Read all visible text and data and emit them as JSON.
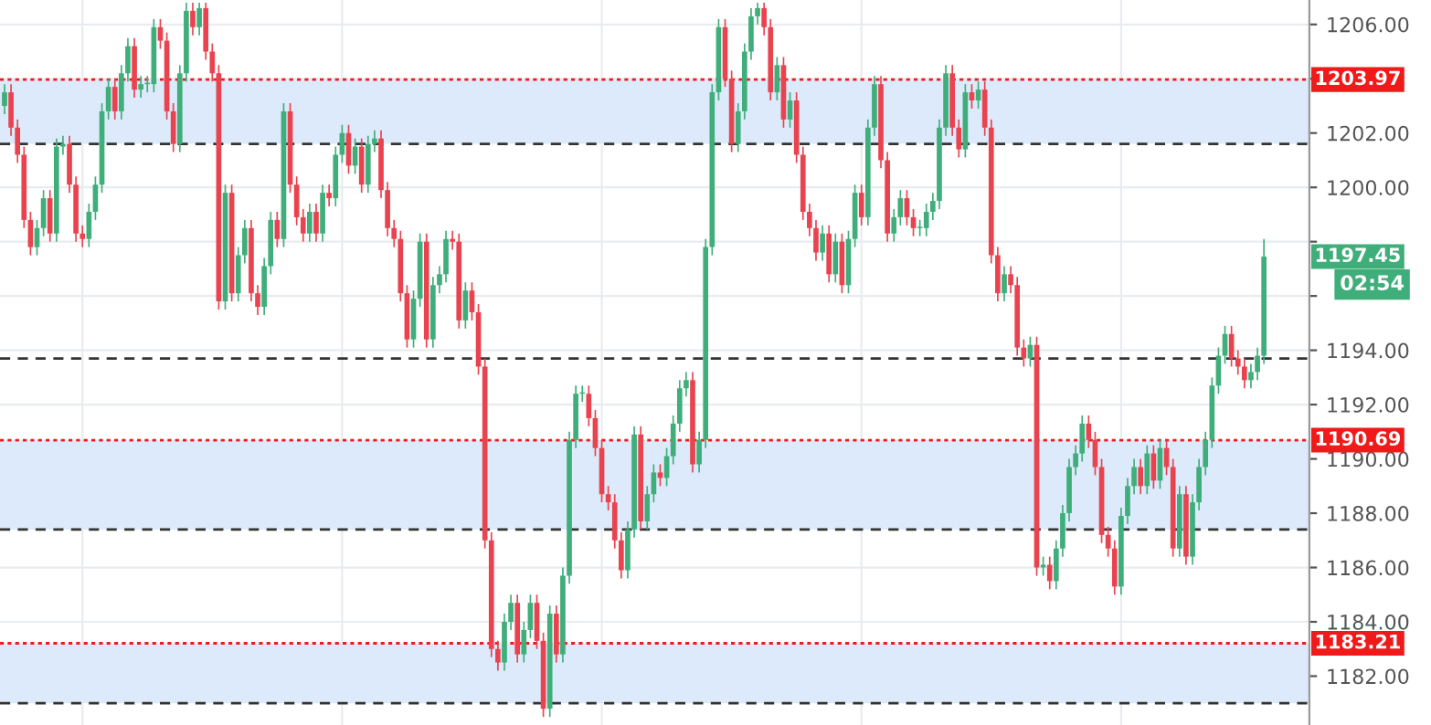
{
  "chart_data": {
    "type": "candlestick",
    "categories": [
      null,
      null,
      null,
      null,
      null,
      null,
      null,
      null,
      null,
      null,
      null,
      null,
      null,
      null,
      null,
      null,
      null,
      null,
      null,
      null,
      null,
      null,
      null,
      null,
      null,
      null,
      null,
      null,
      null,
      null,
      null,
      null,
      null,
      null,
      null,
      null,
      null,
      null,
      null,
      null,
      null,
      null,
      null,
      null,
      null,
      null,
      null,
      null,
      null,
      null,
      null,
      null,
      null,
      null,
      null,
      null,
      null,
      null,
      null,
      null,
      null,
      null,
      null,
      null,
      null,
      null,
      null,
      null,
      null,
      null,
      null,
      null,
      null,
      null,
      null,
      null,
      null,
      null,
      null,
      null,
      null,
      null,
      null,
      null,
      null,
      null,
      null,
      null,
      null,
      null,
      null,
      null,
      null,
      null,
      null,
      null,
      null,
      null,
      null,
      null,
      null,
      null,
      null,
      null,
      null,
      null,
      null,
      null,
      null,
      null,
      null,
      null,
      null,
      null,
      null,
      null,
      null,
      null,
      null,
      null,
      null,
      null,
      null,
      null,
      null,
      null,
      null,
      null,
      null,
      null,
      null,
      null,
      null,
      null,
      null,
      null,
      null,
      null,
      null,
      null,
      null,
      null,
      null,
      null,
      null,
      null,
      null,
      null,
      null,
      null,
      null,
      null,
      null,
      null,
      null,
      null,
      null,
      null,
      null,
      null,
      null,
      null,
      null,
      null,
      null,
      null,
      null,
      null,
      null,
      null,
      null,
      null,
      null,
      null,
      null,
      null,
      null,
      null,
      null,
      null,
      null,
      null,
      null,
      null,
      null,
      null,
      null,
      null,
      null,
      null,
      null,
      null,
      null,
      null,
      null
    ],
    "ohlc": [
      [
        1203.0,
        1203.8,
        1202.7,
        1203.5
      ],
      [
        1203.5,
        1203.8,
        1201.9,
        1202.2
      ],
      [
        1202.2,
        1202.5,
        1200.9,
        1201.2
      ],
      [
        1201.2,
        1201.5,
        1198.5,
        1198.8
      ],
      [
        1198.8,
        1199.1,
        1197.5,
        1197.8
      ],
      [
        1197.8,
        1198.8,
        1197.5,
        1198.5
      ],
      [
        1198.5,
        1199.9,
        1198.2,
        1199.6
      ],
      [
        1199.6,
        1199.9,
        1198.0,
        1198.3
      ],
      [
        1198.3,
        1201.8,
        1198.0,
        1201.5
      ],
      [
        1201.5,
        1201.9,
        1201.2,
        1201.6
      ],
      [
        1201.6,
        1201.9,
        1199.8,
        1200.1
      ],
      [
        1200.1,
        1200.4,
        1198.0,
        1198.3
      ],
      [
        1198.3,
        1198.6,
        1197.8,
        1198.1
      ],
      [
        1198.1,
        1199.4,
        1197.8,
        1199.1
      ],
      [
        1199.1,
        1200.4,
        1198.8,
        1200.1
      ],
      [
        1200.1,
        1203.1,
        1199.8,
        1202.8
      ],
      [
        1202.8,
        1204.0,
        1202.5,
        1203.7
      ],
      [
        1203.7,
        1204.0,
        1202.5,
        1202.8
      ],
      [
        1202.8,
        1204.5,
        1202.5,
        1204.2
      ],
      [
        1204.2,
        1205.5,
        1203.9,
        1205.2
      ],
      [
        1205.2,
        1205.5,
        1203.3,
        1203.6
      ],
      [
        1203.6,
        1204.1,
        1203.3,
        1203.8
      ],
      [
        1203.8,
        1204.1,
        1203.5,
        1203.8
      ],
      [
        1203.8,
        1206.2,
        1203.5,
        1205.9
      ],
      [
        1205.9,
        1206.2,
        1205.1,
        1205.4
      ],
      [
        1205.4,
        1205.7,
        1202.5,
        1202.8
      ],
      [
        1202.8,
        1203.1,
        1201.3,
        1201.6
      ],
      [
        1201.6,
        1204.5,
        1201.3,
        1204.2
      ],
      [
        1204.2,
        1206.8,
        1203.9,
        1206.5
      ],
      [
        1206.5,
        1206.8,
        1205.6,
        1205.9
      ],
      [
        1205.9,
        1206.8,
        1205.6,
        1206.6
      ],
      [
        1206.6,
        1206.8,
        1204.7,
        1205.0
      ],
      [
        1205.0,
        1205.3,
        1203.9,
        1204.2
      ],
      [
        1204.2,
        1204.5,
        1195.5,
        1195.8
      ],
      [
        1195.8,
        1200.1,
        1195.5,
        1199.8
      ],
      [
        1199.8,
        1200.1,
        1195.8,
        1196.1
      ],
      [
        1196.1,
        1197.8,
        1195.8,
        1197.5
      ],
      [
        1197.5,
        1198.8,
        1197.2,
        1198.5
      ],
      [
        1198.5,
        1198.8,
        1195.8,
        1196.1
      ],
      [
        1196.1,
        1196.4,
        1195.3,
        1195.6
      ],
      [
        1195.6,
        1197.4,
        1195.3,
        1197.1
      ],
      [
        1197.1,
        1199.1,
        1196.8,
        1198.8
      ],
      [
        1198.8,
        1199.1,
        1197.8,
        1198.1
      ],
      [
        1198.1,
        1203.1,
        1197.8,
        1202.8
      ],
      [
        1202.8,
        1203.1,
        1199.8,
        1200.1
      ],
      [
        1200.1,
        1200.4,
        1198.6,
        1198.9
      ],
      [
        1198.9,
        1199.2,
        1198.0,
        1198.3
      ],
      [
        1198.3,
        1199.4,
        1198.0,
        1199.1
      ],
      [
        1199.1,
        1199.4,
        1198.0,
        1198.3
      ],
      [
        1198.3,
        1200.1,
        1198.0,
        1199.8
      ],
      [
        1199.8,
        1200.1,
        1199.3,
        1199.6
      ],
      [
        1199.6,
        1201.5,
        1199.3,
        1201.2
      ],
      [
        1201.2,
        1202.3,
        1200.9,
        1202.0
      ],
      [
        1202.0,
        1202.3,
        1200.5,
        1200.8
      ],
      [
        1200.8,
        1201.8,
        1200.5,
        1201.5
      ],
      [
        1201.5,
        1201.8,
        1199.8,
        1200.1
      ],
      [
        1200.1,
        1201.9,
        1199.8,
        1201.6
      ],
      [
        1201.6,
        1202.1,
        1201.3,
        1201.8
      ],
      [
        1201.8,
        1202.1,
        1199.6,
        1199.9
      ],
      [
        1199.9,
        1200.2,
        1198.2,
        1198.5
      ],
      [
        1198.5,
        1198.8,
        1197.8,
        1198.1
      ],
      [
        1198.1,
        1198.4,
        1195.8,
        1196.1
      ],
      [
        1196.1,
        1196.4,
        1194.1,
        1194.4
      ],
      [
        1194.4,
        1196.2,
        1194.1,
        1195.9
      ],
      [
        1195.9,
        1198.3,
        1195.6,
        1198.0
      ],
      [
        1198.0,
        1198.3,
        1194.1,
        1194.4
      ],
      [
        1194.4,
        1196.7,
        1194.1,
        1196.4
      ],
      [
        1196.4,
        1197.1,
        1196.1,
        1196.8
      ],
      [
        1196.8,
        1198.4,
        1196.5,
        1198.1
      ],
      [
        1198.1,
        1198.4,
        1197.7,
        1198.0
      ],
      [
        1198.0,
        1198.3,
        1194.8,
        1195.1
      ],
      [
        1195.1,
        1196.5,
        1194.8,
        1196.2
      ],
      [
        1196.2,
        1196.5,
        1195.1,
        1195.4
      ],
      [
        1195.4,
        1195.7,
        1193.1,
        1193.4
      ],
      [
        1193.4,
        1193.7,
        1186.7,
        1187.0
      ],
      [
        1187.0,
        1187.3,
        1182.7,
        1183.0
      ],
      [
        1183.0,
        1183.3,
        1182.2,
        1182.5
      ],
      [
        1182.5,
        1184.3,
        1182.2,
        1184.0
      ],
      [
        1184.0,
        1185.0,
        1183.7,
        1184.7
      ],
      [
        1184.7,
        1185.0,
        1182.5,
        1182.8
      ],
      [
        1182.8,
        1184.0,
        1182.5,
        1183.7
      ],
      [
        1183.7,
        1185.0,
        1183.4,
        1184.7
      ],
      [
        1184.7,
        1185.0,
        1183.0,
        1183.3
      ],
      [
        1183.3,
        1183.6,
        1180.5,
        1180.8
      ],
      [
        1180.8,
        1184.6,
        1180.5,
        1184.3
      ],
      [
        1184.3,
        1184.6,
        1182.5,
        1182.8
      ],
      [
        1182.8,
        1186.0,
        1182.5,
        1185.7
      ],
      [
        1185.7,
        1191.0,
        1185.4,
        1190.7
      ],
      [
        1190.7,
        1192.7,
        1190.4,
        1192.4
      ],
      [
        1192.4,
        1192.7,
        1192.1,
        1192.4
      ],
      [
        1192.4,
        1192.7,
        1191.2,
        1191.5
      ],
      [
        1191.5,
        1191.8,
        1190.1,
        1190.4
      ],
      [
        1190.4,
        1190.7,
        1188.4,
        1188.7
      ],
      [
        1188.7,
        1189.0,
        1188.1,
        1188.4
      ],
      [
        1188.4,
        1188.7,
        1186.7,
        1187.0
      ],
      [
        1187.0,
        1187.3,
        1185.6,
        1185.9
      ],
      [
        1185.9,
        1187.7,
        1185.6,
        1187.4
      ],
      [
        1187.4,
        1191.2,
        1187.1,
        1190.9
      ],
      [
        1190.9,
        1191.2,
        1187.4,
        1187.7
      ],
      [
        1187.7,
        1189.0,
        1187.4,
        1188.7
      ],
      [
        1188.7,
        1189.8,
        1188.4,
        1189.5
      ],
      [
        1189.5,
        1189.8,
        1189.0,
        1189.3
      ],
      [
        1189.3,
        1190.4,
        1189.0,
        1190.1
      ],
      [
        1190.1,
        1191.6,
        1189.8,
        1191.3
      ],
      [
        1191.3,
        1192.9,
        1191.0,
        1192.6
      ],
      [
        1192.6,
        1193.2,
        1192.3,
        1192.9
      ],
      [
        1192.9,
        1193.2,
        1189.5,
        1189.8
      ],
      [
        1189.8,
        1191.0,
        1189.5,
        1190.7
      ],
      [
        1190.7,
        1198.1,
        1190.4,
        1197.8
      ],
      [
        1197.8,
        1203.8,
        1197.5,
        1203.5
      ],
      [
        1203.5,
        1206.2,
        1203.2,
        1205.9
      ],
      [
        1205.9,
        1206.2,
        1203.7,
        1204.0
      ],
      [
        1204.0,
        1204.3,
        1201.3,
        1201.6
      ],
      [
        1201.6,
        1203.1,
        1201.3,
        1202.8
      ],
      [
        1202.8,
        1205.3,
        1202.5,
        1205.0
      ],
      [
        1205.0,
        1206.6,
        1204.7,
        1206.3
      ],
      [
        1206.3,
        1206.8,
        1206.0,
        1206.6
      ],
      [
        1206.6,
        1206.8,
        1205.6,
        1205.9
      ],
      [
        1205.9,
        1206.2,
        1203.2,
        1203.5
      ],
      [
        1203.5,
        1204.8,
        1203.2,
        1204.5
      ],
      [
        1204.5,
        1204.8,
        1202.2,
        1202.5
      ],
      [
        1202.5,
        1203.5,
        1202.2,
        1203.2
      ],
      [
        1203.2,
        1203.5,
        1200.9,
        1201.2
      ],
      [
        1201.2,
        1201.5,
        1198.8,
        1199.1
      ],
      [
        1199.1,
        1199.4,
        1198.2,
        1198.5
      ],
      [
        1198.5,
        1198.8,
        1197.3,
        1197.6
      ],
      [
        1197.6,
        1198.6,
        1197.3,
        1198.3
      ],
      [
        1198.3,
        1198.6,
        1196.5,
        1196.8
      ],
      [
        1196.8,
        1198.3,
        1196.5,
        1198.0
      ],
      [
        1198.0,
        1198.3,
        1196.1,
        1196.4
      ],
      [
        1196.4,
        1198.4,
        1196.1,
        1198.1
      ],
      [
        1198.1,
        1200.1,
        1197.8,
        1199.8
      ],
      [
        1199.8,
        1200.1,
        1198.6,
        1198.9
      ],
      [
        1198.9,
        1202.5,
        1198.6,
        1202.2
      ],
      [
        1202.2,
        1204.1,
        1201.9,
        1203.8
      ],
      [
        1203.8,
        1204.1,
        1200.7,
        1201.0
      ],
      [
        1201.0,
        1201.3,
        1198.0,
        1198.3
      ],
      [
        1198.3,
        1199.2,
        1198.0,
        1198.9
      ],
      [
        1198.9,
        1199.9,
        1198.6,
        1199.6
      ],
      [
        1199.6,
        1199.9,
        1198.6,
        1198.9
      ],
      [
        1198.9,
        1199.2,
        1198.2,
        1198.5
      ],
      [
        1198.5,
        1198.8,
        1198.2,
        1198.5
      ],
      [
        1198.5,
        1199.4,
        1198.2,
        1199.1
      ],
      [
        1199.1,
        1199.8,
        1198.8,
        1199.5
      ],
      [
        1199.5,
        1202.5,
        1199.2,
        1202.2
      ],
      [
        1202.2,
        1204.5,
        1201.9,
        1204.2
      ],
      [
        1204.2,
        1204.5,
        1201.9,
        1202.2
      ],
      [
        1202.2,
        1202.5,
        1201.1,
        1201.4
      ],
      [
        1201.4,
        1203.8,
        1201.1,
        1203.5
      ],
      [
        1203.5,
        1203.8,
        1202.9,
        1203.2
      ],
      [
        1203.2,
        1203.9,
        1202.9,
        1203.6
      ],
      [
        1203.6,
        1203.9,
        1201.9,
        1202.2
      ],
      [
        1202.2,
        1202.5,
        1197.2,
        1197.5
      ],
      [
        1197.5,
        1197.8,
        1195.8,
        1196.1
      ],
      [
        1196.1,
        1197.1,
        1195.8,
        1196.8
      ],
      [
        1196.8,
        1197.1,
        1196.1,
        1196.4
      ],
      [
        1196.4,
        1196.7,
        1193.8,
        1194.1
      ],
      [
        1194.1,
        1194.4,
        1193.4,
        1193.7
      ],
      [
        1193.7,
        1194.5,
        1193.4,
        1194.2
      ],
      [
        1194.2,
        1194.5,
        1185.7,
        1186.0
      ],
      [
        1186.0,
        1186.4,
        1185.7,
        1186.1
      ],
      [
        1186.1,
        1186.4,
        1185.2,
        1185.5
      ],
      [
        1185.5,
        1187.0,
        1185.2,
        1186.7
      ],
      [
        1186.7,
        1188.3,
        1186.4,
        1188.0
      ],
      [
        1188.0,
        1190.0,
        1187.7,
        1189.7
      ],
      [
        1189.7,
        1190.5,
        1189.4,
        1190.2
      ],
      [
        1190.2,
        1191.6,
        1189.9,
        1191.3
      ],
      [
        1191.3,
        1191.6,
        1190.4,
        1190.7
      ],
      [
        1190.7,
        1191.0,
        1189.4,
        1189.7
      ],
      [
        1189.7,
        1190.0,
        1186.9,
        1187.2
      ],
      [
        1187.2,
        1187.5,
        1186.4,
        1186.7
      ],
      [
        1186.7,
        1187.0,
        1185.0,
        1185.3
      ],
      [
        1185.3,
        1188.2,
        1185.0,
        1187.9
      ],
      [
        1187.9,
        1189.3,
        1187.6,
        1189.0
      ],
      [
        1189.0,
        1190.0,
        1188.7,
        1189.7
      ],
      [
        1189.7,
        1190.0,
        1188.7,
        1189.0
      ],
      [
        1189.0,
        1190.5,
        1188.7,
        1190.2
      ],
      [
        1190.2,
        1190.5,
        1188.9,
        1189.2
      ],
      [
        1189.2,
        1190.7,
        1188.9,
        1190.4
      ],
      [
        1190.4,
        1190.7,
        1189.4,
        1189.7
      ],
      [
        1189.7,
        1190.0,
        1186.4,
        1186.7
      ],
      [
        1186.7,
        1189.0,
        1186.4,
        1188.7
      ],
      [
        1188.7,
        1189.0,
        1186.1,
        1186.4
      ],
      [
        1186.4,
        1188.7,
        1186.1,
        1188.4
      ],
      [
        1188.4,
        1190.0,
        1188.1,
        1189.7
      ],
      [
        1189.7,
        1191.0,
        1189.4,
        1190.7
      ],
      [
        1190.7,
        1193.0,
        1190.4,
        1192.7
      ],
      [
        1192.7,
        1194.1,
        1192.4,
        1193.8
      ],
      [
        1193.8,
        1194.9,
        1193.5,
        1194.6
      ],
      [
        1194.6,
        1194.9,
        1193.4,
        1193.7
      ],
      [
        1193.7,
        1194.0,
        1193.1,
        1193.4
      ],
      [
        1193.4,
        1193.7,
        1192.6,
        1192.9
      ],
      [
        1192.9,
        1193.5,
        1192.6,
        1193.2
      ],
      [
        1193.2,
        1194.1,
        1192.9,
        1193.8
      ],
      [
        1193.8,
        1198.1,
        1193.5,
        1197.45
      ]
    ],
    "colors": [
      "#3fae7a",
      "#e8434f",
      "#e8434f",
      "#e8434f",
      "#e8434f",
      "#3fae7a",
      "#3fae7a",
      "#e8434f",
      "#3fae7a",
      "#3fae7a",
      "#e8434f",
      "#e8434f",
      "#e8434f",
      "#3fae7a",
      "#3fae7a",
      "#3fae7a",
      "#3fae7a",
      "#e8434f",
      "#3fae7a",
      "#3fae7a",
      "#e8434f",
      "#3fae7a",
      "#3fae7a",
      "#3fae7a",
      "#e8434f",
      "#e8434f",
      "#e8434f",
      "#3fae7a",
      "#3fae7a",
      "#e8434f",
      "#3fae7a",
      "#e8434f",
      "#e8434f",
      "#e8434f",
      "#3fae7a",
      "#e8434f",
      "#3fae7a",
      "#3fae7a",
      "#e8434f",
      "#e8434f",
      "#3fae7a",
      "#3fae7a",
      "#e8434f",
      "#3fae7a",
      "#e8434f",
      "#e8434f",
      "#e8434f",
      "#3fae7a",
      "#e8434f",
      "#3fae7a",
      "#e8434f",
      "#3fae7a",
      "#3fae7a",
      "#e8434f",
      "#3fae7a",
      "#e8434f",
      "#3fae7a",
      "#3fae7a",
      "#e8434f",
      "#e8434f",
      "#e8434f",
      "#e8434f",
      "#e8434f",
      "#3fae7a",
      "#3fae7a",
      "#e8434f",
      "#3fae7a",
      "#3fae7a",
      "#3fae7a",
      "#e8434f",
      "#e8434f",
      "#3fae7a",
      "#e8434f",
      "#e8434f",
      "#e8434f",
      "#e8434f",
      "#e8434f",
      "#3fae7a",
      "#3fae7a",
      "#e8434f",
      "#3fae7a",
      "#3fae7a",
      "#e8434f",
      "#e8434f",
      "#3fae7a",
      "#e8434f",
      "#3fae7a",
      "#3fae7a",
      "#3fae7a",
      "#3fae7a",
      "#e8434f",
      "#e8434f",
      "#e8434f",
      "#e8434f",
      "#e8434f",
      "#e8434f",
      "#3fae7a",
      "#3fae7a",
      "#e8434f",
      "#3fae7a",
      "#3fae7a",
      "#e8434f",
      "#3fae7a",
      "#3fae7a",
      "#3fae7a",
      "#3fae7a",
      "#e8434f",
      "#3fae7a",
      "#3fae7a",
      "#3fae7a",
      "#3fae7a",
      "#e8434f",
      "#e8434f",
      "#3fae7a",
      "#3fae7a",
      "#3fae7a",
      "#3fae7a",
      "#e8434f",
      "#e8434f",
      "#3fae7a",
      "#e8434f",
      "#3fae7a",
      "#e8434f",
      "#e8434f",
      "#e8434f",
      "#e8434f",
      "#3fae7a",
      "#e8434f",
      "#3fae7a",
      "#e8434f",
      "#3fae7a",
      "#3fae7a",
      "#e8434f",
      "#3fae7a",
      "#3fae7a",
      "#e8434f",
      "#e8434f",
      "#3fae7a",
      "#3fae7a",
      "#e8434f",
      "#e8434f",
      "#3fae7a",
      "#3fae7a",
      "#3fae7a",
      "#3fae7a",
      "#3fae7a",
      "#e8434f",
      "#e8434f",
      "#3fae7a",
      "#e8434f",
      "#3fae7a",
      "#e8434f",
      "#e8434f",
      "#e8434f",
      "#3fae7a",
      "#e8434f",
      "#e8434f",
      "#e8434f",
      "#3fae7a",
      "#e8434f",
      "#3fae7a",
      "#e8434f",
      "#3fae7a",
      "#3fae7a",
      "#3fae7a",
      "#3fae7a",
      "#3fae7a",
      "#e8434f",
      "#e8434f",
      "#e8434f",
      "#e8434f",
      "#e8434f",
      "#3fae7a",
      "#3fae7a",
      "#3fae7a",
      "#e8434f",
      "#3fae7a",
      "#e8434f",
      "#3fae7a",
      "#e8434f",
      "#e8434f",
      "#3fae7a",
      "#e8434f",
      "#3fae7a",
      "#3fae7a",
      "#3fae7a",
      "#3fae7a",
      "#3fae7a",
      "#3fae7a",
      "#e8434f",
      "#e8434f",
      "#e8434f",
      "#3fae7a",
      "#3fae7a",
      "#3fae7a"
    ],
    "ylim": [
      1180.2,
      1206.9
    ],
    "yticks": [
      {
        "value": 1182,
        "label": "1182.00"
      },
      {
        "value": 1184,
        "label": "1184.00"
      },
      {
        "value": 1186,
        "label": "1186.00"
      },
      {
        "value": 1188,
        "label": "1188.00"
      },
      {
        "value": 1190,
        "label": "1190.00"
      },
      {
        "value": 1192,
        "label": "1192.00"
      },
      {
        "value": 1194,
        "label": "1194.00"
      },
      {
        "value": 1196,
        "label": null
      },
      {
        "value": 1198,
        "label": null
      },
      {
        "value": 1200,
        "label": "1200.00"
      },
      {
        "value": 1202,
        "label": "1202.00"
      },
      {
        "value": 1204,
        "label": null
      },
      {
        "value": 1206,
        "label": "1206.00"
      }
    ],
    "tick_labels": "y",
    "grid": true,
    "ref_lines": [
      {
        "axis": "y",
        "value": 1201.6,
        "label": null,
        "color": "#333333",
        "line_style": "dashed"
      },
      {
        "axis": "y",
        "value": 1193.7,
        "label": null,
        "color": "#333333",
        "line_style": "dashed"
      },
      {
        "axis": "y",
        "value": 1187.4,
        "label": null,
        "color": "#333333",
        "line_style": "dashed"
      },
      {
        "axis": "y",
        "value": 1181.0,
        "label": null,
        "color": "#333333",
        "line_style": "dashed"
      },
      {
        "axis": "y",
        "value": 1203.97,
        "label": "1203.97",
        "color": "#f01a1a",
        "line_style": "dotted"
      },
      {
        "axis": "y",
        "value": 1190.69,
        "label": "1190.69",
        "color": "#f01a1a",
        "line_style": "dotted"
      },
      {
        "axis": "y",
        "value": 1183.21,
        "label": "1183.21",
        "color": "#f01a1a",
        "line_style": "dotted"
      }
    ],
    "bands": [
      {
        "axis": "y",
        "from": 1201.6,
        "to": 1203.97,
        "label": null,
        "color": "#dceafb"
      },
      {
        "axis": "y",
        "from": 1187.4,
        "to": 1190.69,
        "label": null,
        "color": "#dceafb"
      },
      {
        "axis": "y",
        "from": 1181.0,
        "to": 1183.21,
        "label": null,
        "color": "#dceafb"
      }
    ],
    "annotations": [
      "1197.45",
      "02:54"
    ]
  }
}
